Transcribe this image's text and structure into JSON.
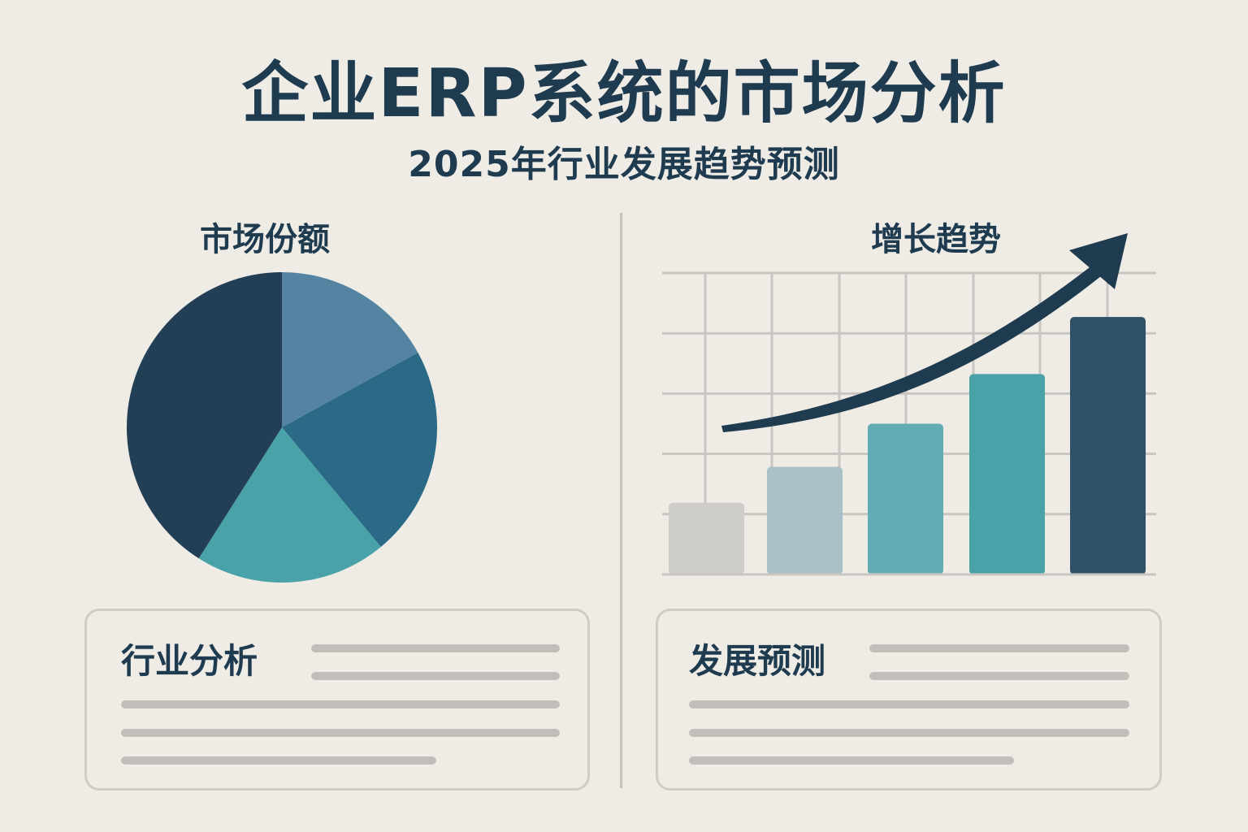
{
  "header": {
    "title": "企业ERP系统的市场分析",
    "subtitle": "2025年行业发展趋势预测"
  },
  "colors": {
    "background": "#efece6",
    "text": "#1f3b50",
    "navy": "#223f55",
    "steel": "#5584a3",
    "blue": "#2a6a86",
    "teal": "#48a2a8",
    "grey": "#cfcdca",
    "light_blue": "#a9c0c8",
    "mid_teal": "#62adb4",
    "dark_slate": "#2e5168"
  },
  "chart_data": [
    {
      "type": "pie",
      "title": "市场份额",
      "slices": [
        {
          "value": 17,
          "color": "#5584a3"
        },
        {
          "value": 22,
          "color": "#2a6a86"
        },
        {
          "value": 20,
          "color": "#48a2a8"
        },
        {
          "value": 41,
          "color": "#223f55"
        }
      ]
    },
    {
      "type": "bar",
      "title": "增长趋势",
      "values": [
        88,
        132,
        185,
        246,
        316
      ],
      "colors": [
        "#cfcdca",
        "#a9c0c8",
        "#62adb4",
        "#48a2a8",
        "#2e5168"
      ],
      "ylim": [
        0,
        370
      ],
      "grid": true,
      "trend_arrow": true
    }
  ],
  "cards": [
    {
      "title": "行业分析"
    },
    {
      "title": "发展预测"
    }
  ]
}
